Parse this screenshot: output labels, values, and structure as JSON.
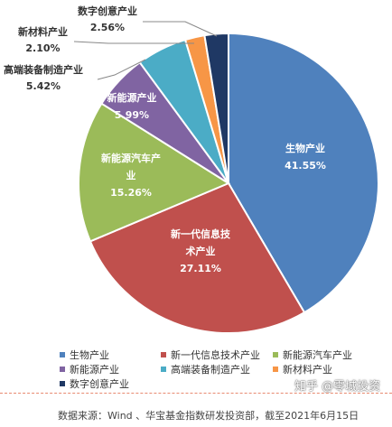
{
  "chart_data": {
    "type": "pie",
    "start_angle_deg": 0,
    "direction": "clockwise",
    "slices": [
      {
        "name": "生物产业",
        "value": 41.55,
        "display": "41.55%",
        "color": "#4f81bd"
      },
      {
        "name": "新一代信息技术产业",
        "value": 27.11,
        "display": "27.11%",
        "color": "#c0504d"
      },
      {
        "name": "新能源汽车产业",
        "value": 15.26,
        "display": "15.26%",
        "color": "#9bbb59"
      },
      {
        "name": "新能源产业",
        "value": 5.99,
        "display": "5.99%",
        "color": "#8064a2"
      },
      {
        "name": "高端装备制造产业",
        "value": 5.42,
        "display": "5.42%",
        "color": "#4bacc6"
      },
      {
        "name": "新材料产业",
        "value": 2.1,
        "display": "2.10%",
        "color": "#f79646"
      },
      {
        "name": "数字创意产业",
        "value": 2.56,
        "display": "2.56%",
        "color": "#1f3864"
      }
    ],
    "legend_position": "bottom"
  },
  "footer": {
    "source": "数据来源：Wind 、华宝基金指数研发投资部，截至2021年6月15日",
    "watermark": "知乎 @零城投资"
  }
}
